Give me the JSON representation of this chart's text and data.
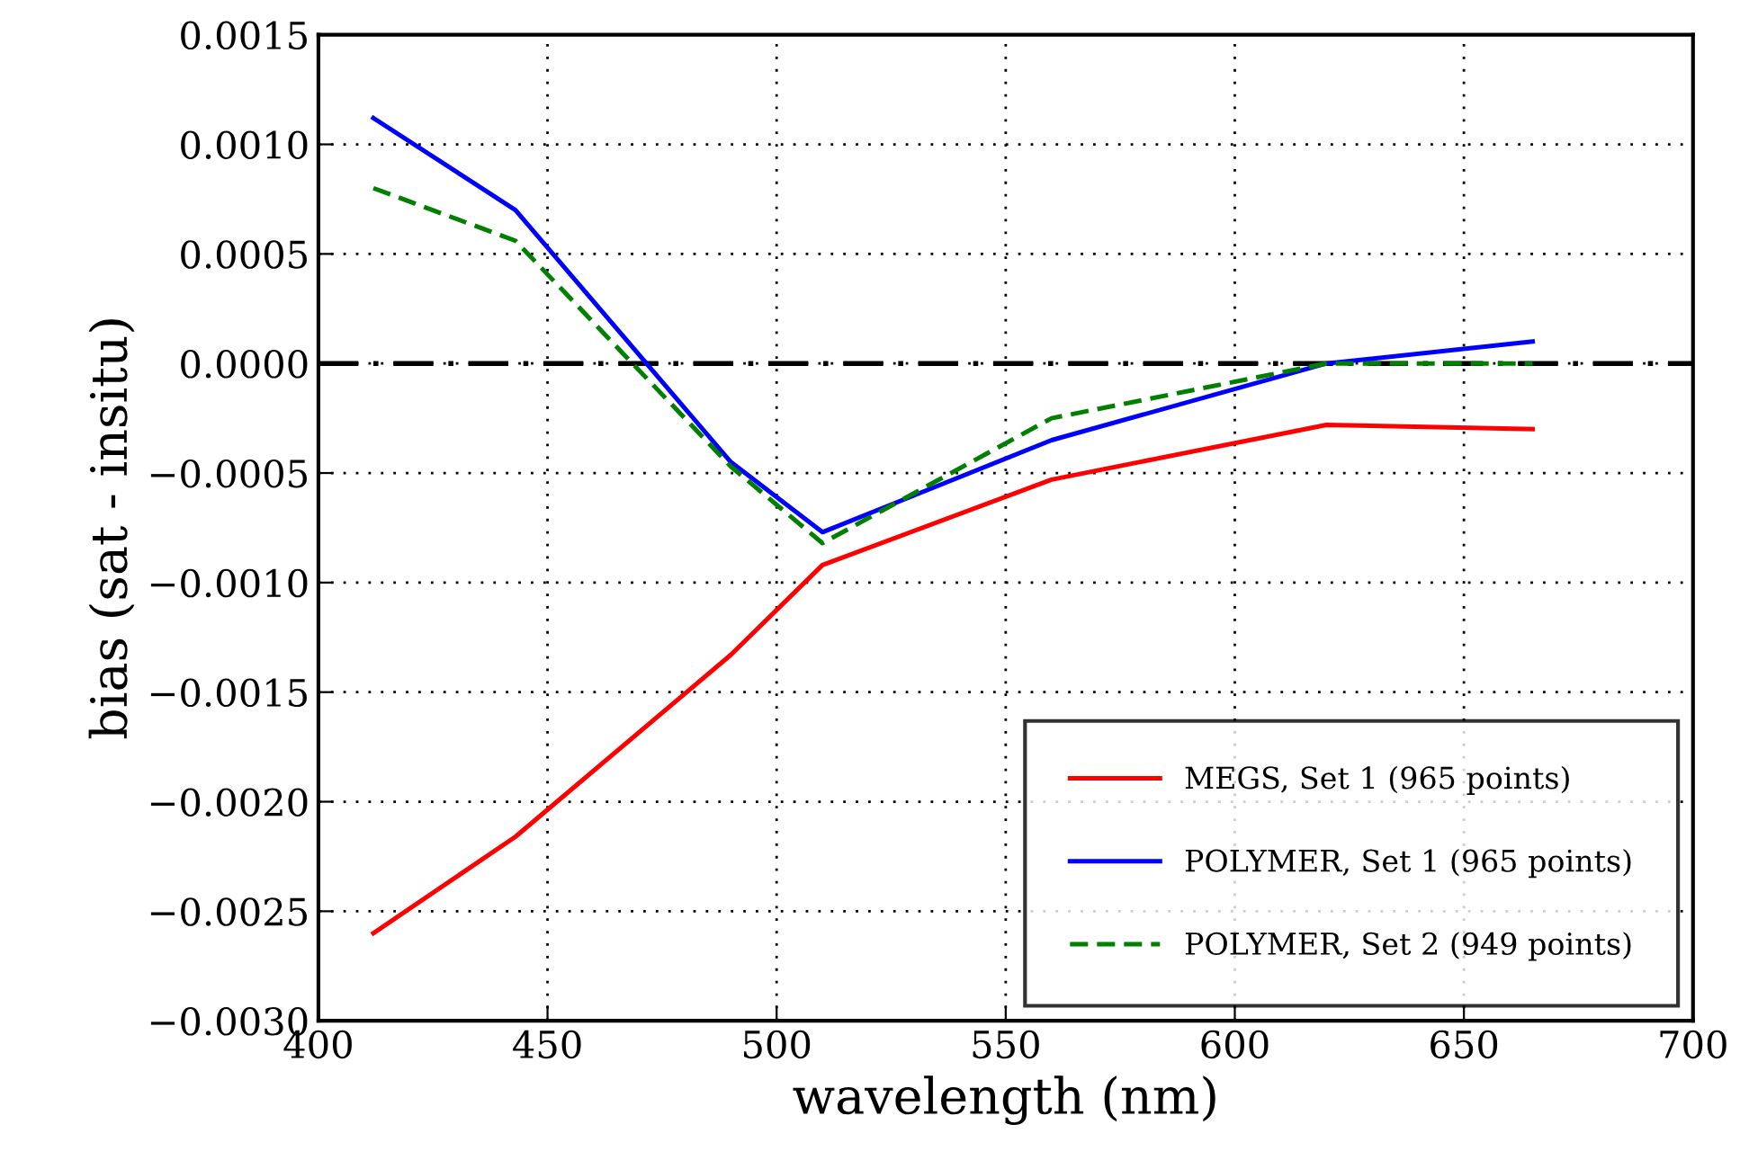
{
  "chart_data": {
    "type": "line",
    "xlabel": "wavelength (nm)",
    "ylabel": "bias (sat - insitu)",
    "x": [
      412,
      443,
      490,
      510,
      560,
      620,
      665
    ],
    "series": [
      {
        "name": "MEGS, Set 1 (965 points)",
        "color": "#ff0000",
        "line_style": "solid",
        "values": [
          -0.0026,
          -0.00216,
          -0.00133,
          -0.00092,
          -0.00053,
          -0.00028,
          -0.0003
        ]
      },
      {
        "name": "POLYMER, Set 1 (965 points)",
        "color": "#0000ff",
        "line_style": "solid",
        "values": [
          0.00112,
          0.0007,
          -0.00045,
          -0.00077,
          -0.00035,
          0.0,
          0.0001
        ]
      },
      {
        "name": "POLYMER, Set 2 (949 points)",
        "color": "#008000",
        "line_style": "dashed",
        "values": [
          0.0008,
          0.00056,
          -0.00047,
          -0.00082,
          -0.00025,
          0.0,
          0.0
        ]
      }
    ],
    "xlim": [
      400,
      700
    ],
    "xticks": [
      400,
      450,
      500,
      550,
      600,
      650,
      700
    ],
    "ylim": [
      -0.003,
      0.0015
    ],
    "yticks": [
      {
        "value": -0.003,
        "label": "−0.0030"
      },
      {
        "value": -0.0025,
        "label": "−0.0025"
      },
      {
        "value": -0.002,
        "label": "−0.0020"
      },
      {
        "value": -0.0015,
        "label": "−0.0015"
      },
      {
        "value": -0.001,
        "label": "−0.0010"
      },
      {
        "value": -0.0005,
        "label": "−0.0005"
      },
      {
        "value": 0,
        "label": "0.0000"
      },
      {
        "value": 0.0005,
        "label": "0.0005"
      },
      {
        "value": 0.001,
        "label": "0.0010"
      },
      {
        "value": 0.0015,
        "label": "0.0015"
      }
    ],
    "ref_lines": [
      {
        "axis": "y",
        "value": 0,
        "color": "#000000",
        "line_style": "dashdot"
      }
    ],
    "grid": true,
    "legend": "lower right"
  }
}
